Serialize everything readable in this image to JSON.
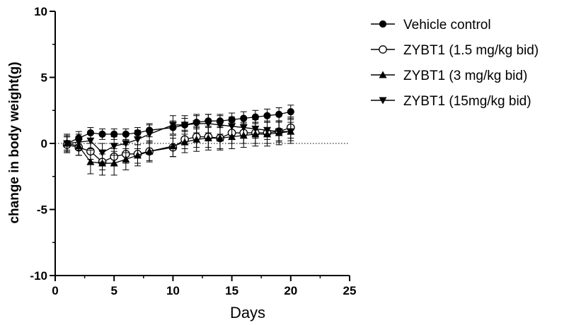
{
  "chart_data": {
    "type": "line",
    "title": "",
    "xlabel": "Days",
    "ylabel": "change in body weight(g)",
    "xlim": [
      0,
      25
    ],
    "ylim": [
      -10,
      10
    ],
    "xticks": [
      "0",
      "5",
      "10",
      "15",
      "20",
      "25"
    ],
    "yticks": [
      "-10",
      "-5",
      "0",
      "5",
      "10"
    ],
    "grid": false,
    "reference_line": {
      "y": 0,
      "style": "dotted"
    },
    "legend_position": "top-right",
    "x": [
      1,
      2,
      3,
      4,
      5,
      6,
      7,
      8,
      10,
      11,
      12,
      13,
      14,
      15,
      16,
      17,
      18,
      19,
      20
    ],
    "series": [
      {
        "name": "Vehicle control",
        "marker": "filled-circle",
        "values": [
          0.0,
          0.4,
          0.8,
          0.7,
          0.7,
          0.7,
          0.8,
          1.0,
          1.2,
          1.4,
          1.6,
          1.7,
          1.7,
          1.8,
          1.9,
          2.0,
          2.1,
          2.2,
          2.4
        ],
        "errors": [
          0.5,
          0.5,
          0.4,
          0.4,
          0.4,
          0.4,
          0.4,
          0.5,
          0.5,
          0.5,
          0.5,
          0.5,
          0.5,
          0.5,
          0.5,
          0.5,
          0.5,
          0.5,
          0.5
        ]
      },
      {
        "name": "ZYBT1 (1.5 mg/kg bid)",
        "marker": "open-circle",
        "values": [
          -0.1,
          -0.3,
          -0.6,
          -1.4,
          -1.0,
          -0.8,
          -0.8,
          -0.6,
          -0.3,
          0.3,
          0.5,
          0.5,
          0.4,
          0.8,
          0.8,
          0.8,
          0.8,
          0.9,
          1.2
        ],
        "errors": [
          0.6,
          0.6,
          0.6,
          0.6,
          0.6,
          0.7,
          0.7,
          0.7,
          0.7,
          0.7,
          0.8,
          0.8,
          0.8,
          0.8,
          0.8,
          0.8,
          0.8,
          0.8,
          0.8
        ]
      },
      {
        "name": "ZYBT1 (3 mg/kg bid)",
        "marker": "triangle-up",
        "values": [
          0.0,
          -0.2,
          -1.4,
          -1.5,
          -1.5,
          -1.2,
          -0.9,
          -0.6,
          -0.2,
          0.1,
          0.3,
          0.4,
          0.4,
          0.5,
          0.6,
          0.7,
          0.7,
          0.8,
          0.9
        ],
        "errors": [
          0.7,
          0.7,
          0.9,
          0.9,
          0.9,
          0.8,
          0.8,
          0.8,
          0.8,
          0.8,
          0.9,
          0.9,
          0.9,
          0.9,
          0.9,
          0.9,
          0.9,
          0.9,
          0.9
        ]
      },
      {
        "name": "ZYBT1 (15mg/kg bid)",
        "marker": "triangle-down",
        "values": [
          0.0,
          0.1,
          0.2,
          -0.7,
          -0.2,
          0.0,
          0.3,
          0.7,
          1.4,
          1.4,
          1.5,
          1.5,
          1.4,
          1.3,
          1.2,
          1.1,
          1.0,
          0.9,
          0.9
        ],
        "errors": [
          0.6,
          0.6,
          0.6,
          0.7,
          0.7,
          0.7,
          0.7,
          0.7,
          0.7,
          0.7,
          0.7,
          0.7,
          0.7,
          0.7,
          0.7,
          0.7,
          0.7,
          0.7,
          0.7
        ]
      }
    ]
  }
}
